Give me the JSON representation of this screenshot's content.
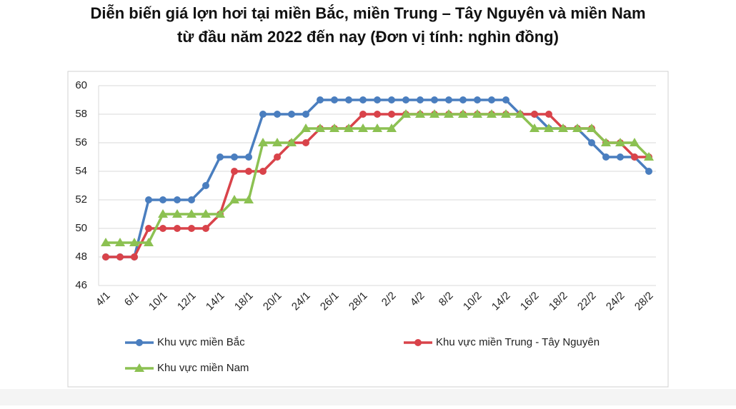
{
  "chart_data": {
    "type": "line",
    "title": "Diễn biến giá lợn hơi tại miền Bắc, miền Trung – Tây Nguyên và miền Nam",
    "subtitle": "từ đầu năm 2022 đến nay (Đơn vị tính: nghìn đồng)",
    "categories": [
      "4/1",
      null,
      "6/1",
      null,
      "10/1",
      null,
      "12/1",
      null,
      "14/1",
      null,
      "18/1",
      null,
      "20/1",
      null,
      "24/1",
      null,
      "26/1",
      null,
      "28/1",
      null,
      "2/2",
      null,
      "4/2",
      null,
      "8/2",
      null,
      "10/2",
      null,
      "14/2",
      null,
      "16/2",
      null,
      "18/2",
      null,
      "22/2",
      null,
      "24/2",
      null,
      "28/2"
    ],
    "series": [
      {
        "name": "Khu vực miền Bắc",
        "color": "#4a7ebf",
        "marker": "circle",
        "values": [
          48,
          48,
          48,
          52,
          52,
          52,
          52,
          53,
          55,
          55,
          55,
          58,
          58,
          58,
          58,
          59,
          59,
          59,
          59,
          59,
          59,
          59,
          59,
          59,
          59,
          59,
          59,
          59,
          59,
          58,
          58,
          57,
          57,
          57,
          56,
          55,
          55,
          55,
          54
        ]
      },
      {
        "name": "Khu vực miền Trung - Tây Nguyên",
        "color": "#d9434a",
        "marker": "circle",
        "values": [
          48,
          48,
          48,
          50,
          50,
          50,
          50,
          50,
          51,
          54,
          54,
          54,
          55,
          56,
          56,
          57,
          57,
          57,
          58,
          58,
          58,
          58,
          58,
          58,
          58,
          58,
          58,
          58,
          58,
          58,
          58,
          58,
          57,
          57,
          57,
          56,
          56,
          55,
          55
        ]
      },
      {
        "name": "Khu vực miền Nam",
        "color": "#8cc152",
        "marker": "triangle",
        "values": [
          49,
          49,
          49,
          49,
          51,
          51,
          51,
          51,
          51,
          52,
          52,
          56,
          56,
          56,
          57,
          57,
          57,
          57,
          57,
          57,
          57,
          58,
          58,
          58,
          58,
          58,
          58,
          58,
          58,
          58,
          57,
          57,
          57,
          57,
          57,
          56,
          56,
          56,
          55
        ]
      }
    ],
    "ylim": [
      46,
      60
    ],
    "yticks": [
      46,
      48,
      50,
      52,
      54,
      56,
      58,
      60
    ],
    "grid": true
  }
}
